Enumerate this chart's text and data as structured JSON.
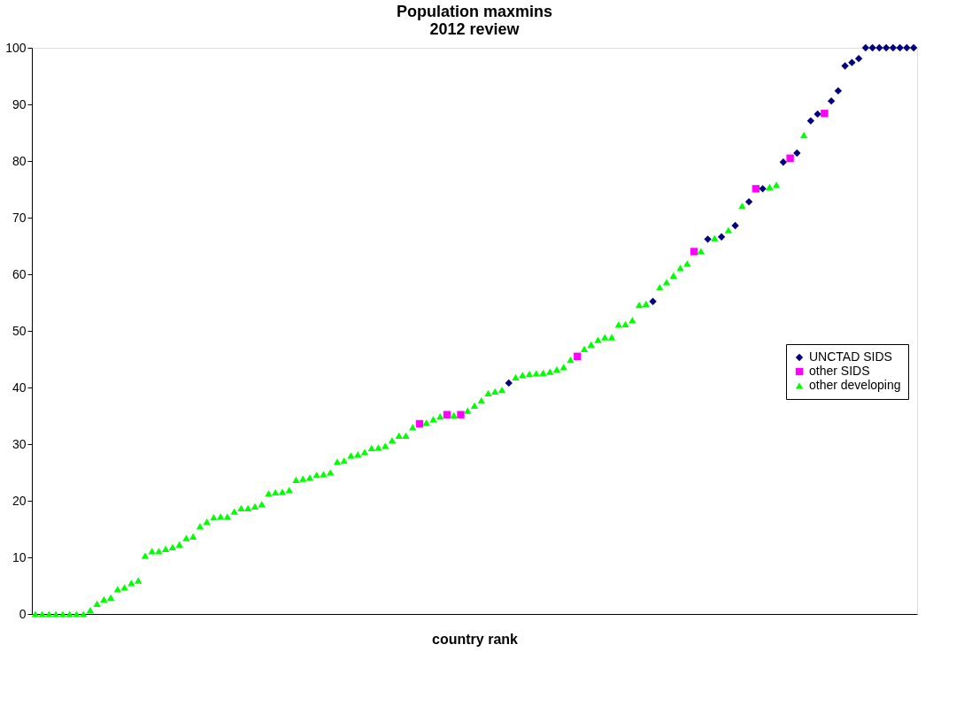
{
  "chart_data": {
    "type": "scatter",
    "title": "Population maxmins\n2012 review",
    "xlabel": "country rank",
    "categories": [
      null,
      null,
      null,
      null,
      null,
      null,
      null,
      null,
      null,
      null,
      null,
      null,
      null,
      null,
      null,
      null,
      null,
      null,
      null,
      null,
      null,
      null,
      null,
      null,
      null,
      null,
      null,
      null,
      null,
      null,
      null,
      null,
      null,
      null,
      null,
      null,
      null,
      null,
      null,
      null,
      null,
      null,
      null,
      null,
      null,
      null,
      null,
      null,
      null,
      null,
      null,
      null,
      null,
      null,
      null,
      null,
      null,
      null,
      null,
      null,
      null,
      null,
      null,
      null,
      null,
      null,
      null,
      null,
      null,
      null,
      null,
      null,
      null,
      null,
      null,
      null,
      null,
      null,
      null,
      null,
      null,
      null,
      null,
      null,
      null,
      null,
      null,
      null,
      null,
      null,
      null,
      null,
      null,
      null,
      null,
      null,
      null,
      null,
      null,
      null,
      null,
      null,
      null,
      null,
      null,
      null,
      null,
      null,
      null,
      null,
      null,
      null,
      null,
      null,
      null,
      null,
      null,
      null,
      null,
      null,
      null,
      null,
      null,
      null,
      null,
      null,
      null,
      null,
      null
    ],
    "series": [
      {
        "name": "UNCTAD SIDS",
        "color": "#000080",
        "marker": "diamond",
        "values": [
          null,
          null,
          null,
          null,
          null,
          null,
          null,
          null,
          null,
          null,
          null,
          null,
          null,
          null,
          null,
          null,
          null,
          null,
          null,
          null,
          null,
          null,
          null,
          null,
          null,
          null,
          null,
          null,
          null,
          null,
          null,
          null,
          null,
          null,
          null,
          null,
          null,
          null,
          null,
          null,
          null,
          null,
          null,
          null,
          null,
          null,
          null,
          null,
          null,
          null,
          null,
          null,
          null,
          null,
          null,
          null,
          null,
          null,
          null,
          null,
          null,
          null,
          null,
          null,
          null,
          null,
          null,
          null,
          null,
          40.8,
          null,
          null,
          null,
          null,
          null,
          null,
          null,
          null,
          null,
          null,
          null,
          null,
          null,
          null,
          null,
          null,
          null,
          null,
          null,
          null,
          55.2,
          null,
          null,
          null,
          null,
          null,
          null,
          null,
          66.2,
          null,
          66.6,
          null,
          68.6,
          null,
          72.8,
          null,
          75.1,
          null,
          null,
          79.8,
          null,
          81.4,
          null,
          87.1,
          88.3,
          null,
          90.6,
          92.4,
          96.8,
          97.4,
          98.1,
          100,
          100,
          100,
          100,
          100,
          100,
          100,
          100
        ]
      },
      {
        "name": "other SIDS",
        "color": "#ff00ff",
        "marker": "square",
        "values": [
          null,
          null,
          null,
          null,
          null,
          null,
          null,
          null,
          null,
          null,
          null,
          null,
          null,
          null,
          null,
          null,
          null,
          null,
          null,
          null,
          null,
          null,
          null,
          null,
          null,
          null,
          null,
          null,
          null,
          null,
          null,
          null,
          null,
          null,
          null,
          null,
          null,
          null,
          null,
          null,
          null,
          null,
          null,
          null,
          null,
          null,
          null,
          null,
          null,
          null,
          null,
          null,
          null,
          null,
          null,
          null,
          33.6,
          null,
          null,
          null,
          35.2,
          null,
          35.2,
          null,
          null,
          null,
          null,
          null,
          null,
          null,
          null,
          null,
          null,
          null,
          null,
          null,
          null,
          null,
          null,
          45.5,
          null,
          null,
          null,
          null,
          null,
          null,
          null,
          null,
          null,
          null,
          null,
          null,
          null,
          null,
          null,
          null,
          64.0,
          null,
          null,
          null,
          null,
          null,
          null,
          null,
          null,
          75.1,
          null,
          null,
          null,
          null,
          80.5,
          null,
          null,
          null,
          null,
          88.4,
          null,
          null,
          null,
          null,
          null,
          null,
          null,
          null,
          null,
          null,
          null,
          null,
          null
        ]
      },
      {
        "name": "other developing",
        "color": "#00ff00",
        "marker": "triangle",
        "values": [
          0,
          0,
          0,
          0,
          0,
          0,
          0,
          0,
          0.7,
          1.8,
          2.6,
          2.9,
          4.4,
          4.7,
          5.5,
          5.9,
          10.3,
          11.1,
          11.1,
          11.5,
          11.8,
          12.3,
          13.4,
          13.7,
          15.5,
          16.3,
          17.1,
          17.2,
          17.2,
          18.1,
          18.7,
          18.7,
          19.0,
          19.4,
          21.3,
          21.5,
          21.6,
          21.9,
          23.7,
          23.9,
          24.1,
          24.6,
          24.7,
          25.0,
          26.9,
          27.1,
          28.0,
          28.2,
          28.6,
          29.3,
          29.4,
          29.7,
          30.7,
          31.5,
          31.5,
          33.0,
          null,
          33.8,
          34.4,
          34.9,
          null,
          35.1,
          null,
          35.9,
          36.8,
          37.7,
          39.0,
          39.3,
          39.6,
          null,
          41.8,
          42.2,
          42.4,
          42.5,
          42.6,
          42.8,
          43.2,
          43.6,
          44.9,
          null,
          46.8,
          47.6,
          48.4,
          48.9,
          48.9,
          51.1,
          51.2,
          51.9,
          54.6,
          54.8,
          null,
          57.7,
          58.6,
          59.8,
          61.1,
          61.9,
          null,
          64.1,
          null,
          66.4,
          null,
          67.8,
          null,
          72.1,
          null,
          null,
          null,
          75.4,
          75.8,
          null,
          null,
          null,
          84.6,
          null,
          null,
          null,
          null,
          null,
          null,
          null,
          null,
          null,
          null,
          null,
          null,
          null,
          null,
          null,
          null
        ]
      }
    ],
    "ylim": [
      0,
      100
    ],
    "yticks": [
      0,
      10,
      20,
      30,
      40,
      50,
      60,
      70,
      80,
      90,
      100
    ],
    "grid": false,
    "legend": "right"
  }
}
